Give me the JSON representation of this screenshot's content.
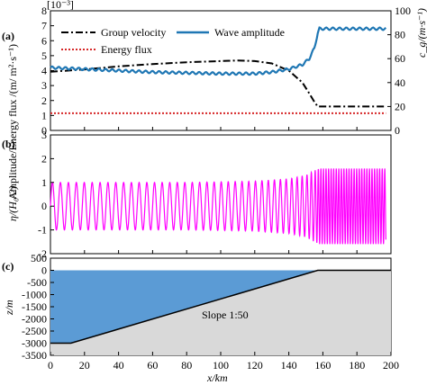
{
  "chart_data": [
    {
      "panel_label": "(a)",
      "type": "line",
      "xlim": [
        0,
        200
      ],
      "ylim": [
        0,
        8
      ],
      "y2lim": [
        0,
        100
      ],
      "scale_note": "[10⁻³]",
      "ylabel": "Amplitude/Energy flux /(m/ m²·s⁻¹)",
      "y2label": "c_g/(m·s⁻¹)",
      "xticks": [
        0,
        20,
        40,
        60,
        80,
        100,
        120,
        140,
        160,
        180,
        200
      ],
      "yticks": [
        0,
        1,
        2,
        3,
        4,
        5,
        6,
        7,
        8
      ],
      "y2ticks": [
        0,
        20,
        40,
        60,
        80,
        100
      ],
      "legend": [
        "Group velocity",
        "Wave amplitude",
        "Energy flux"
      ],
      "legend_position": "top",
      "colors": {
        "group_velocity": "#000000",
        "wave_amplitude": "#1f77b4",
        "energy_flux": "#d62728"
      },
      "series": [
        {
          "name": "Group velocity",
          "axis": "right",
          "style": "dash-dot",
          "x": [
            0,
            20,
            40,
            60,
            80,
            100,
            110,
            120,
            130,
            140,
            148,
            152,
            155,
            157,
            160,
            180,
            197
          ],
          "y": [
            49,
            51,
            53.5,
            55.5,
            57,
            58,
            58.5,
            58,
            56,
            50,
            40,
            31,
            24,
            20,
            20,
            20,
            20
          ]
        },
        {
          "name": "Wave amplitude",
          "axis": "left",
          "style": "solid",
          "x": [
            0,
            20,
            40,
            60,
            80,
            100,
            120,
            130,
            140,
            148,
            152,
            155,
            157,
            158,
            160,
            180,
            197
          ],
          "y": [
            4.2,
            4.1,
            4.0,
            3.9,
            3.85,
            3.8,
            3.8,
            3.9,
            4.1,
            4.4,
            4.8,
            5.5,
            6.5,
            6.8,
            6.8,
            6.8,
            6.8
          ]
        },
        {
          "name": "Energy flux",
          "axis": "left",
          "style": "dotted",
          "x": [
            0,
            197
          ],
          "y": [
            1.15,
            1.15
          ]
        }
      ]
    },
    {
      "panel_label": "(b)",
      "type": "line",
      "xlim": [
        0,
        200
      ],
      "ylim": [
        -2,
        3
      ],
      "ylabel": "η/(H₀/2)",
      "yticks": [
        -2,
        -1,
        0,
        1,
        2,
        3
      ],
      "color": "#ff00ff",
      "series": [
        {
          "description": "oscillating free-surface elevation",
          "x": [
            0,
            40,
            80,
            120,
            140,
            150,
            155,
            158,
            197
          ],
          "amplitude": [
            1.0,
            1.0,
            1.0,
            1.05,
            1.15,
            1.3,
            1.5,
            1.6,
            1.6
          ],
          "wavelength_km": [
            4.7,
            4.6,
            4.4,
            3.9,
            3.3,
            2.8,
            2.2,
            1.5,
            1.5
          ]
        }
      ]
    },
    {
      "panel_label": "(c)",
      "type": "area",
      "xlim": [
        0,
        200
      ],
      "ylim": [
        -3500,
        500
      ],
      "xlabel": "x/km",
      "ylabel": "z/m",
      "xticks": [
        0,
        20,
        40,
        60,
        80,
        100,
        120,
        140,
        160,
        180,
        200
      ],
      "yticks": [
        500,
        0,
        -500,
        -1000,
        -1500,
        -2000,
        -2500,
        -3000,
        -3500
      ],
      "annotation": "Slope 1:50",
      "colors": {
        "water": "#5b9bd5",
        "seabed": "#d9d9d9"
      },
      "bathymetry": {
        "x": [
          0,
          12,
          157,
          197
        ],
        "z": [
          -3000,
          -3000,
          0,
          0
        ]
      }
    }
  ]
}
